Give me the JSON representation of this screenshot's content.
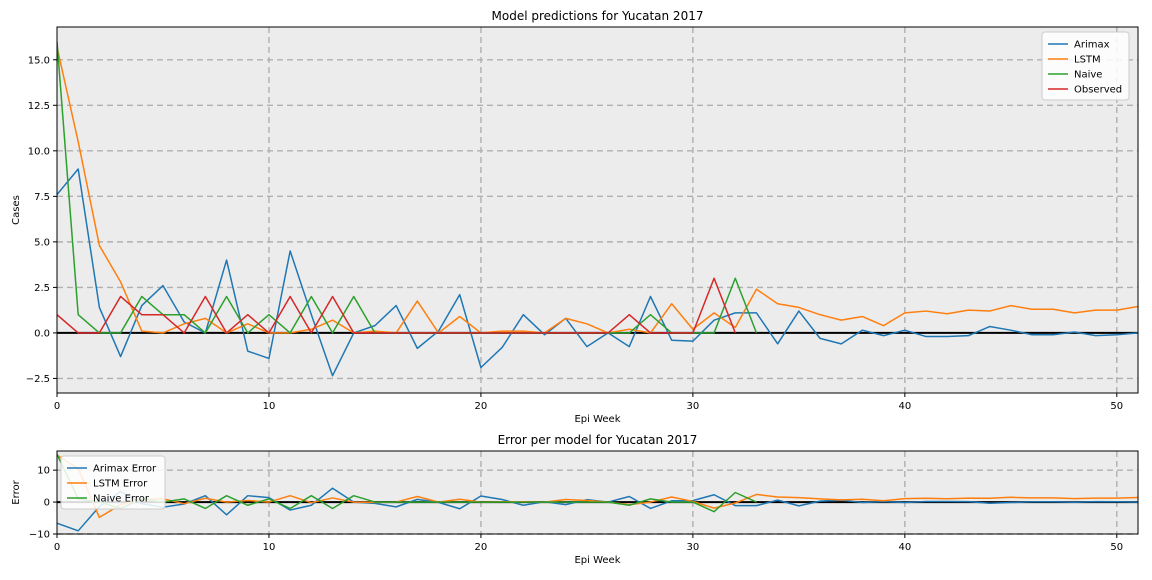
{
  "chart_data": [
    {
      "type": "line",
      "title": "Model predictions for Yucatan 2017",
      "xlabel": "Epi Week",
      "ylabel": "Cases",
      "xlim": [
        0,
        51
      ],
      "ylim": [
        -3.3,
        16.8
      ],
      "xticks": [
        0,
        10,
        20,
        30,
        40,
        50
      ],
      "xtick_labels": [
        "0",
        "10",
        "20",
        "30",
        "40",
        "50"
      ],
      "yticks": [
        -2.5,
        0,
        2.5,
        5,
        7.5,
        10,
        12.5,
        15
      ],
      "ytick_labels": [
        "−2.5",
        "0.0",
        "2.5",
        "5.0",
        "7.5",
        "10.0",
        "12.5",
        "15.0"
      ],
      "grid": true,
      "legend_position": "top-right",
      "background": "#ececec",
      "zero_line": true,
      "series": [
        {
          "name": "Arimax",
          "color": "#1f77b4",
          "x": [
            0,
            1,
            2,
            3,
            4,
            5,
            6,
            7,
            8,
            9,
            10,
            11,
            12,
            13,
            14,
            15,
            16,
            17,
            18,
            19,
            20,
            21,
            22,
            23,
            24,
            25,
            26,
            27,
            28,
            29,
            30,
            31,
            32,
            33,
            34,
            35,
            36,
            37,
            38,
            39,
            40,
            41,
            42,
            43,
            44,
            45,
            46,
            47,
            48,
            49,
            50,
            51
          ],
          "values": [
            7.6,
            9.0,
            1.4,
            -1.3,
            1.5,
            2.6,
            0.6,
            0.0,
            4.0,
            -1.0,
            -1.4,
            4.5,
            1.0,
            -2.35,
            0.0,
            0.4,
            1.5,
            -0.85,
            0.1,
            2.1,
            -1.9,
            -0.8,
            1.0,
            -0.1,
            0.8,
            -0.75,
            0.0,
            -0.75,
            2.0,
            -0.4,
            -0.45,
            0.7,
            1.1,
            1.1,
            -0.6,
            1.2,
            -0.3,
            -0.6,
            0.15,
            -0.15,
            0.15,
            -0.2,
            -0.2,
            -0.15,
            0.35,
            0.15,
            -0.1,
            -0.1,
            0.05,
            -0.15,
            -0.1,
            0.0
          ]
        },
        {
          "name": "LSTM",
          "color": "#ff7f0e",
          "x": [
            0,
            1,
            2,
            3,
            4,
            5,
            6,
            7,
            8,
            9,
            10,
            11,
            12,
            13,
            14,
            15,
            16,
            17,
            18,
            19,
            20,
            21,
            22,
            23,
            24,
            25,
            26,
            27,
            28,
            29,
            30,
            31,
            32,
            33,
            34,
            35,
            36,
            37,
            38,
            39,
            40,
            41,
            42,
            43,
            44,
            45,
            46,
            47,
            48,
            49,
            50,
            51
          ],
          "values": [
            15.7,
            10.5,
            4.8,
            2.8,
            0.1,
            0.0,
            0.5,
            0.8,
            0.0,
            0.5,
            0.0,
            0.0,
            0.2,
            0.7,
            0.0,
            0.1,
            0.0,
            1.75,
            0.0,
            0.9,
            0.0,
            0.1,
            0.1,
            0.0,
            0.8,
            0.5,
            0.0,
            0.2,
            0.0,
            1.6,
            0.2,
            1.1,
            0.3,
            2.4,
            1.6,
            1.4,
            1.0,
            0.7,
            0.9,
            0.4,
            1.1,
            1.2,
            1.05,
            1.25,
            1.2,
            1.5,
            1.3,
            1.3,
            1.1,
            1.25,
            1.25,
            1.45
          ]
        },
        {
          "name": "Naive",
          "color": "#2ca02c",
          "x": [
            0,
            1,
            2,
            3,
            4,
            5,
            6,
            7,
            8,
            9,
            10,
            11,
            12,
            13,
            14,
            15,
            16,
            17,
            18,
            19,
            20,
            21,
            22,
            23,
            24,
            25,
            26,
            27,
            28,
            29,
            30,
            31,
            32,
            33
          ],
          "values": [
            16.0,
            1.0,
            0.0,
            0.0,
            2.0,
            1.0,
            1.0,
            0.0,
            2.0,
            0.0,
            1.0,
            0.0,
            2.0,
            0.0,
            2.0,
            0.0,
            0.0,
            0.0,
            0.0,
            0.0,
            0.0,
            0.0,
            0.0,
            0.0,
            0.0,
            0.0,
            0.0,
            0.0,
            1.0,
            0.0,
            0.0,
            0.0,
            3.0,
            0.0
          ]
        },
        {
          "name": "Observed",
          "color": "#d62728",
          "x": [
            0,
            1,
            2,
            3,
            4,
            5,
            6,
            7,
            8,
            9,
            10,
            11,
            12,
            13,
            14,
            15,
            16,
            17,
            18,
            19,
            20,
            21,
            22,
            23,
            24,
            25,
            26,
            27,
            28,
            29,
            30,
            31,
            32
          ],
          "values": [
            1.0,
            0.0,
            0.0,
            2.0,
            1.0,
            1.0,
            0.0,
            2.0,
            0.0,
            1.0,
            0.0,
            2.0,
            0.0,
            2.0,
            0.0,
            0.0,
            0.0,
            0.0,
            0.0,
            0.0,
            0.0,
            0.0,
            0.0,
            0.0,
            0.0,
            0.0,
            0.0,
            1.0,
            0.0,
            0.0,
            0.0,
            3.0,
            0.0
          ]
        }
      ]
    },
    {
      "type": "line",
      "title": "Error per model for Yucatan 2017",
      "xlabel": "Epi Week",
      "ylabel": "Error",
      "xlim": [
        0,
        51
      ],
      "ylim": [
        -10,
        16
      ],
      "xticks": [
        0,
        10,
        20,
        30,
        40,
        50
      ],
      "xtick_labels": [
        "0",
        "10",
        "20",
        "30",
        "40",
        "50"
      ],
      "yticks": [
        -10,
        0,
        10
      ],
      "ytick_labels": [
        "−10",
        "0",
        "10"
      ],
      "grid": true,
      "legend_position": "top-left",
      "background": "#ececec",
      "zero_line": true,
      "series": [
        {
          "name": "Arimax Error",
          "color": "#1f77b4",
          "x": [
            0,
            1,
            2,
            3,
            4,
            5,
            6,
            7,
            8,
            9,
            10,
            11,
            12,
            13,
            14,
            15,
            16,
            17,
            18,
            19,
            20,
            21,
            22,
            23,
            24,
            25,
            26,
            27,
            28,
            29,
            30,
            31,
            32,
            33,
            34,
            35,
            36,
            37,
            38,
            39,
            40,
            41,
            42,
            43,
            44,
            45,
            46,
            47,
            48,
            49,
            50,
            51
          ],
          "values": [
            -6.6,
            -9.0,
            -1.4,
            3.3,
            -0.5,
            -1.6,
            -0.6,
            2.0,
            -4.0,
            2.0,
            1.4,
            -2.5,
            -1.0,
            4.35,
            0.0,
            -0.4,
            -1.5,
            0.85,
            -0.1,
            -2.1,
            1.9,
            0.8,
            -1.0,
            0.1,
            -0.8,
            0.75,
            0.0,
            1.75,
            -2.0,
            0.4,
            0.45,
            2.3,
            -1.1,
            -1.1,
            0.6,
            -1.2,
            0.3,
            0.6,
            -0.15,
            0.15,
            -0.15,
            0.2,
            0.2,
            0.15,
            -0.35,
            -0.15,
            0.1,
            0.1,
            -0.05,
            0.15,
            0.1,
            0.0
          ]
        },
        {
          "name": "LSTM Error",
          "color": "#ff7f0e",
          "x": [
            0,
            1,
            2,
            3,
            4,
            5,
            6,
            7,
            8,
            9,
            10,
            11,
            12,
            13,
            14,
            15,
            16,
            17,
            18,
            19,
            20,
            21,
            22,
            23,
            24,
            25,
            26,
            27,
            28,
            29,
            30,
            31,
            32,
            33,
            34,
            35,
            36,
            37,
            38,
            39,
            40,
            41,
            42,
            43,
            44,
            45,
            46,
            47,
            48,
            49,
            50,
            51
          ],
          "values": [
            14.7,
            10.5,
            -4.8,
            -0.8,
            0.9,
            1.0,
            -0.5,
            1.2,
            0.0,
            0.5,
            0.0,
            2.0,
            -0.2,
            1.3,
            0.0,
            -0.1,
            0.0,
            1.75,
            0.0,
            0.9,
            0.0,
            0.1,
            0.1,
            0.0,
            0.8,
            0.5,
            0.0,
            -0.8,
            0.0,
            1.6,
            0.2,
            -1.9,
            -0.3,
            2.4,
            1.6,
            1.4,
            1.0,
            0.7,
            0.9,
            0.4,
            1.1,
            1.2,
            1.05,
            1.25,
            1.2,
            1.5,
            1.3,
            1.3,
            1.1,
            1.25,
            1.25,
            1.45
          ]
        },
        {
          "name": "Naive Error",
          "color": "#2ca02c",
          "x": [
            0,
            1,
            2,
            3,
            4,
            5,
            6,
            7,
            8,
            9,
            10,
            11,
            12,
            13,
            14,
            15,
            16,
            17,
            18,
            19,
            20,
            21,
            22,
            23,
            24,
            25,
            26,
            27,
            28,
            29,
            30,
            31,
            32,
            33
          ],
          "values": [
            15.0,
            1.0,
            0.0,
            -2.0,
            1.0,
            0.0,
            1.0,
            -2.0,
            2.0,
            -1.0,
            1.0,
            -2.0,
            2.0,
            -2.0,
            2.0,
            0.0,
            0.0,
            0.0,
            0.0,
            0.0,
            0.0,
            0.0,
            0.0,
            0.0,
            0.0,
            0.0,
            0.0,
            -1.0,
            1.0,
            0.0,
            0.0,
            -3.0,
            3.0,
            0.0
          ]
        }
      ]
    }
  ]
}
